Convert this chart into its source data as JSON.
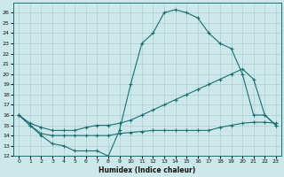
{
  "bg_color": "#cce8ea",
  "grid_color": "#aacfd2",
  "line_color": "#1a7070",
  "xlabel": "Humidex (Indice chaleur)",
  "xlim": [
    -0.5,
    23.5
  ],
  "ylim": [
    12,
    27
  ],
  "xticks": [
    0,
    1,
    2,
    3,
    4,
    5,
    6,
    7,
    8,
    9,
    10,
    11,
    12,
    13,
    14,
    15,
    16,
    17,
    18,
    19,
    20,
    21,
    22,
    23
  ],
  "yticks": [
    12,
    13,
    14,
    15,
    16,
    17,
    18,
    19,
    20,
    21,
    22,
    23,
    24,
    25,
    26
  ],
  "curve1_x": [
    0,
    1,
    2,
    3,
    4,
    5,
    6,
    7,
    8,
    9,
    10,
    11,
    12,
    13,
    14,
    15,
    16,
    17,
    18,
    19,
    20,
    21,
    22,
    23
  ],
  "curve1_y": [
    16.0,
    15.0,
    14.0,
    13.2,
    13.0,
    12.5,
    12.5,
    12.5,
    12.0,
    14.5,
    19.0,
    23.0,
    24.0,
    26.0,
    26.3,
    26.0,
    25.5,
    24.0,
    23.0,
    22.5,
    20.0,
    16.0,
    16.0,
    15.0
  ],
  "curve2_x": [
    0,
    1,
    2,
    3,
    4,
    5,
    6,
    7,
    8,
    9,
    10,
    11,
    12,
    13,
    14,
    15,
    16,
    17,
    18,
    19,
    20,
    21,
    22,
    23
  ],
  "curve2_y": [
    16.0,
    15.2,
    14.8,
    14.5,
    14.5,
    14.5,
    14.8,
    15.0,
    15.0,
    15.2,
    15.5,
    16.0,
    16.5,
    17.0,
    17.5,
    18.0,
    18.5,
    19.0,
    19.5,
    20.0,
    20.5,
    19.5,
    16.0,
    15.0
  ],
  "curve3_x": [
    0,
    1,
    2,
    3,
    4,
    5,
    6,
    7,
    8,
    9,
    10,
    11,
    12,
    13,
    14,
    15,
    16,
    17,
    18,
    19,
    20,
    21,
    22,
    23
  ],
  "curve3_y": [
    16.0,
    15.0,
    14.2,
    14.0,
    14.0,
    14.0,
    14.0,
    14.0,
    14.0,
    14.2,
    14.3,
    14.4,
    14.5,
    14.5,
    14.5,
    14.5,
    14.5,
    14.5,
    14.8,
    15.0,
    15.2,
    15.3,
    15.3,
    15.2
  ]
}
